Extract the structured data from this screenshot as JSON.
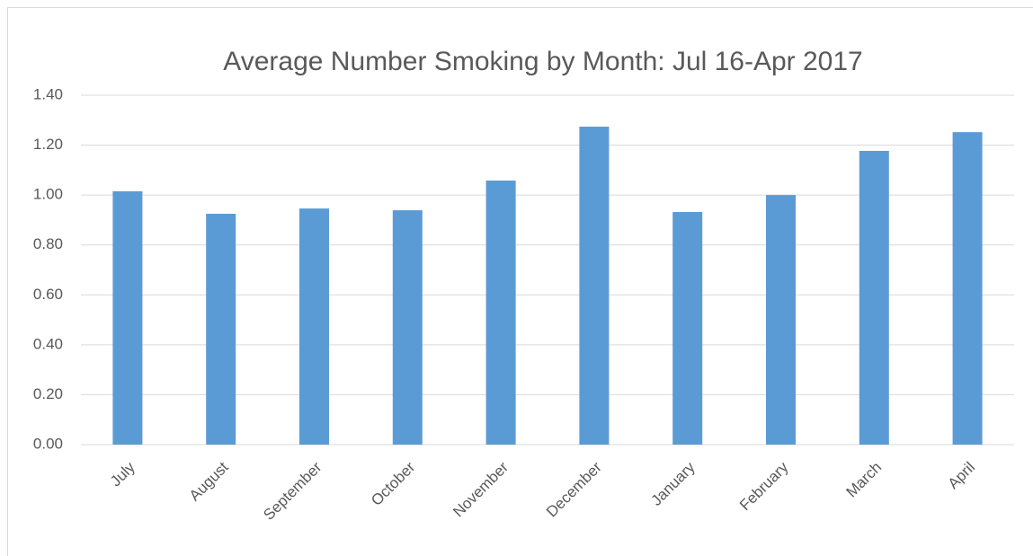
{
  "chart_data": {
    "type": "bar",
    "title": "Average Number Smoking by Month: Jul 16-Apr 2017",
    "categories": [
      "July",
      "August",
      "September",
      "October",
      "November",
      "December",
      "January",
      "February",
      "March",
      "April"
    ],
    "values": [
      1.015,
      0.925,
      0.946,
      0.939,
      1.058,
      1.274,
      0.932,
      1.0,
      1.177,
      1.252
    ],
    "color": "#5b9bd5",
    "ylim": [
      0,
      1.4
    ],
    "yticks": [
      {
        "value": 0,
        "label": "0.00"
      },
      {
        "value": 0.2,
        "label": "0.20"
      },
      {
        "value": 0.4,
        "label": "0.40"
      },
      {
        "value": 0.6,
        "label": "0.60"
      },
      {
        "value": 0.8,
        "label": "0.80"
      },
      {
        "value": 1.0,
        "label": "1.00"
      },
      {
        "value": 1.2,
        "label": "1.20"
      },
      {
        "value": 1.4,
        "label": "1.40"
      }
    ],
    "grid": true
  }
}
